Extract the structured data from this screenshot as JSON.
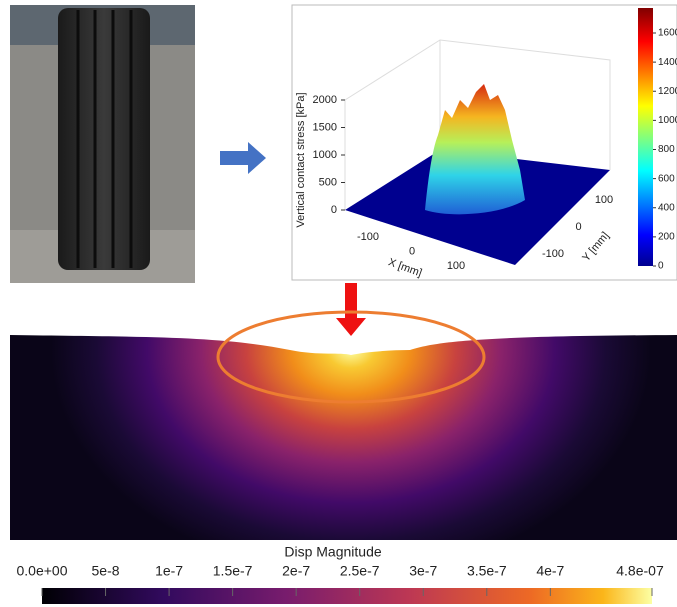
{
  "stress_plot": {
    "z_label": "Vertical contact stress [kPa]",
    "x_label": "X [mm]",
    "y_label": "Y [mm]",
    "zticks": [
      0,
      500,
      1000,
      1500,
      2000
    ],
    "xticks": [
      -100,
      0,
      100
    ],
    "yticks": [
      100,
      0,
      -100
    ],
    "colorbar_ticks": [
      0,
      200,
      400,
      600,
      800,
      1000,
      1200,
      1400,
      1600
    ]
  },
  "displacement": {
    "colorbar_title": "Disp Magnitude",
    "colorbar_ticks": [
      {
        "value": 0,
        "label": "0.0e+00"
      },
      {
        "value": 5e-08,
        "label": "5e-8"
      },
      {
        "value": 1e-07,
        "label": "1e-7"
      },
      {
        "value": 1.5e-07,
        "label": "1.5e-7"
      },
      {
        "value": 2e-07,
        "label": "2e-7"
      },
      {
        "value": 2.5e-07,
        "label": "2.5e-7"
      },
      {
        "value": 3e-07,
        "label": "3e-7"
      },
      {
        "value": 3.5e-07,
        "label": "3.5e-7"
      },
      {
        "value": 4e-07,
        "label": "4e-7"
      },
      {
        "value": 4.8e-07,
        "label": "4.8e-07"
      }
    ]
  }
}
